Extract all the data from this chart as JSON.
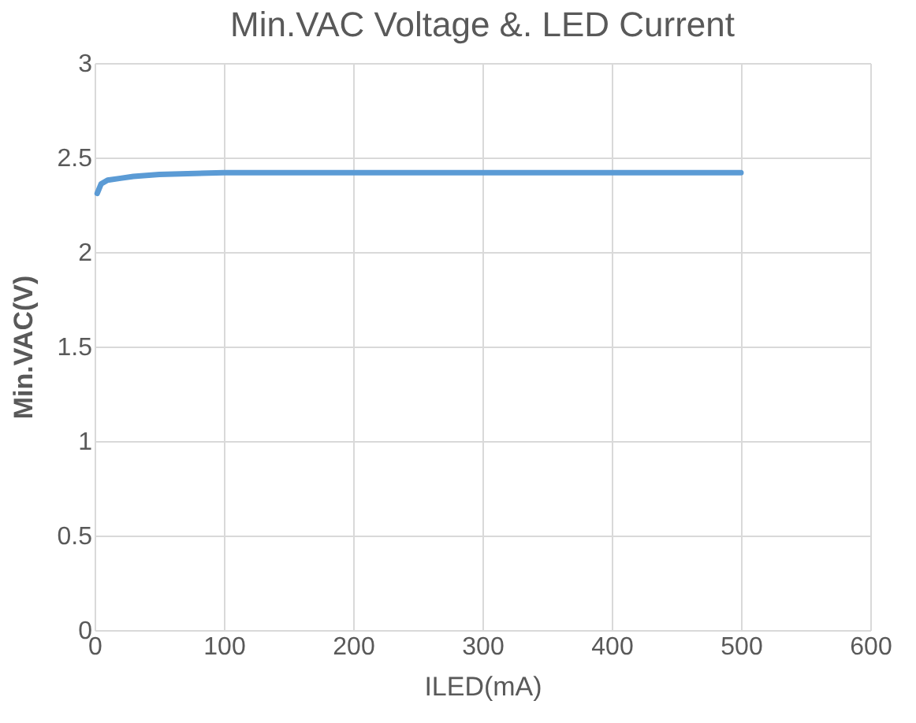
{
  "chart_data": {
    "type": "line",
    "title": "Min.VAC Voltage &. LED Current",
    "xlabel": "ILED(mA)",
    "ylabel": "Min.VAC(V)",
    "x": [
      2,
      5,
      10,
      20,
      30,
      50,
      100,
      200,
      300,
      400,
      500
    ],
    "series": [
      {
        "color": "#5b9bd5",
        "values": [
          2.31,
          2.36,
          2.38,
          2.39,
          2.4,
          2.41,
          2.42,
          2.42,
          2.42,
          2.42,
          2.42
        ]
      }
    ],
    "xlim": [
      0,
      600
    ],
    "xticks": [
      0,
      100,
      200,
      300,
      400,
      500,
      600
    ],
    "ylim": [
      0,
      3
    ],
    "yticks": [
      0,
      0.5,
      1,
      1.5,
      2,
      2.5,
      3
    ],
    "grid": true,
    "marker": "none",
    "line_style": "solid"
  }
}
